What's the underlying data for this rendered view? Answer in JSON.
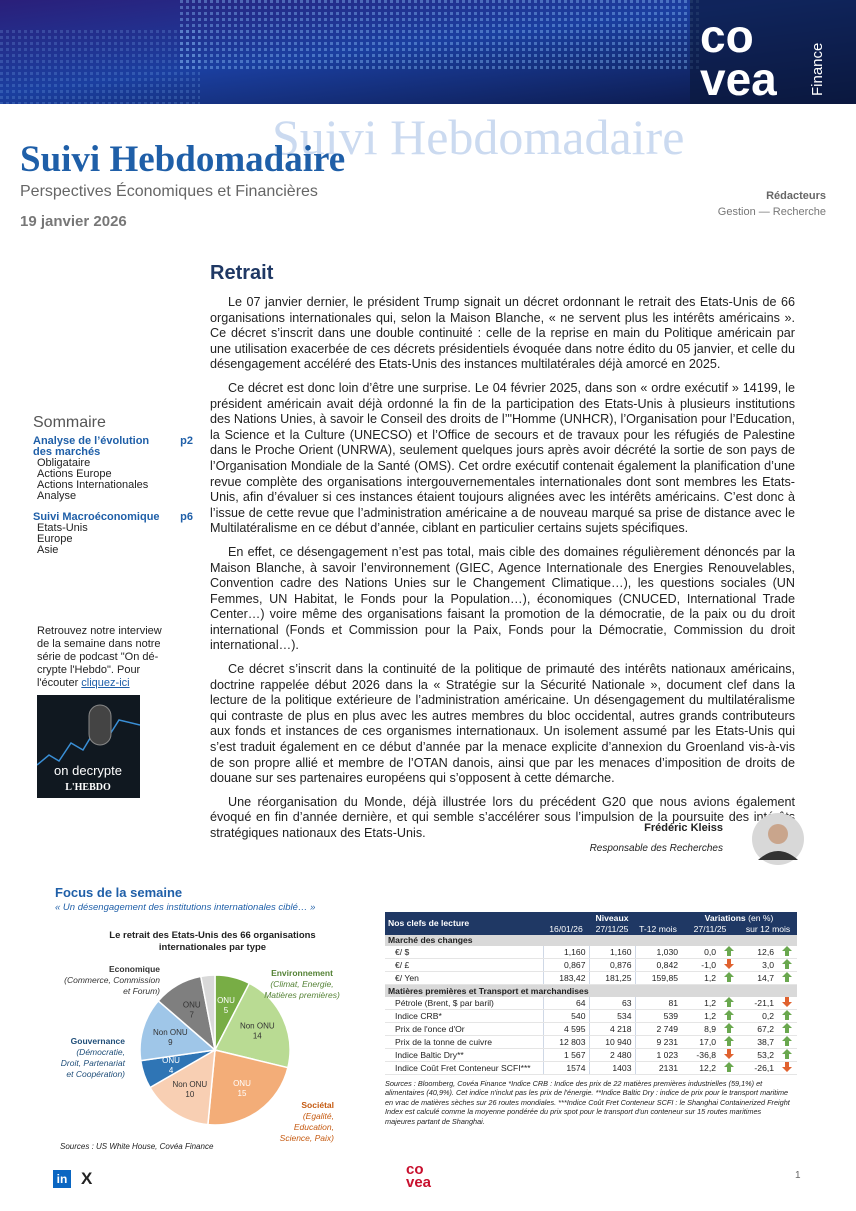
{
  "header": {
    "title": "Suivi Hebdomadaire",
    "subtitle": "Perspectives Économiques et Financières",
    "date": "19 janvier 2026",
    "authors_label": "Rédacteurs",
    "authors": "Gestion — Recherche",
    "logo": [
      "co",
      "vea",
      "Finance"
    ]
  },
  "sidebar": {
    "title": "Sommaire",
    "sections": [
      {
        "title": "Analyse de l’évolution des marchés",
        "page": "p2",
        "items": [
          "Obligataire",
          "Actions Europe",
          "Actions Internationales",
          "Analyse"
        ]
      },
      {
        "title": "Suivi Macroéconomique",
        "page": "p6",
        "items": [
          "Etats-Unis",
          "Europe",
          "Asie"
        ]
      }
    ],
    "podcast_text": "Retrouvez notre interview de la semaine dans notre série de podcast \"On dé-crypte l'Hebdo\". Pour l'écouter",
    "podcast_link": "cliquez-ici",
    "podcast_image": [
      "on decrypte",
      "L'HEBDO"
    ]
  },
  "article": {
    "title": "Retrait",
    "paragraphs": [
      "Le 07 janvier dernier, le président Trump signait un décret ordonnant le retrait des Etats-Unis de 66 organisations internationales qui, selon la Maison Blanche, « ne servent plus les intérêts américains ». Ce décret s’inscrit dans une double continuité : celle de la reprise en main du Politique américain par une utilisation exacerbée de ces décrets présidentiels évoquée dans notre édito du 05 janvier, et celle du désengagement accéléré des Etats-Unis des instances multilatérales déjà amorcé en 2025.",
      "Ce décret est donc loin d’être une surprise. Le 04 février 2025, dans son « ordre exécutif » 14199, le président américain avait déjà ordonné la fin de la participation des Etats-Unis à plusieurs institutions des Nations Unies, à savoir le Conseil des droits de l’\"Homme (UNHCR), l’Organisation pour l’Education, la Science et la Culture (UNECSO) et l’Office de secours et de travaux pour les réfugiés de Palestine dans le Proche Orient (UNRWA), seulement quelques jours après avoir décrété la sortie de son pays de l’Organisation Mondiale de la Santé (OMS). Cet ordre exécutif contenait également la planification d’une revue complète des organisations intergouvernementales internationales dont sont membres les Etats-Unis, afin d’évaluer si ces instances étaient toujours alignées avec les intérêts américains. C’est donc à l’issue de cette revue que l’administration américaine a de nouveau marqué sa prise de distance avec le Multilatéralisme en ce début d’année, ciblant en particulier certains sujets spécifiques.",
      "En effet, ce désengagement n’est pas total, mais cible des domaines régulièrement dénoncés par la Maison Blanche, à savoir l’environnement (GIEC, Agence Internationale des Energies Renouvelables, Convention cadre des Nations Unies sur le Changement Climatique…), les questions sociales (UN Femmes, UN Habitat, le Fonds pour la Population…), économiques (CNUCED, International Trade Center…) voire même des organisations faisant la promotion de la démocratie, de la paix ou du droit international (Fonds et Commission pour la Paix,  Fonds pour la Démocratie, Commission du droit international…).",
      "Ce décret s’inscrit dans la continuité de la politique de primauté des intérêts nationaux américains, doctrine rappelée début 2026 dans la « Stratégie sur la Sécurité Nationale », document clef dans la lecture de la politique extérieure de l’administration américaine. Un désengagement du multilatéralisme qui contraste de plus en plus avec les autres membres du bloc occidental, autres grands contributeurs aux fonds et instances de ces organismes internationaux. Un isolement assumé par les Etats-Unis qui s’est traduit également en ce début d’année par la menace explicite d’annexion du Groenland vis-à-vis de son propre allié et membre de l’OTAN danois, ainsi que par les menaces d’imposition de droits de douane sur ses partenaires européens qui s’opposent à cette démarche.",
      "Une réorganisation du Monde, déjà illustrée lors du précédent G20 que nous avions également évoqué en fin d’année dernière, et qui semble s’accélérer sous l’impulsion de la poursuite des intérêts stratégiques nationaux des Etats-Unis."
    ],
    "author": "Frédéric Kleiss",
    "author_role": "Responsable des Recherches"
  },
  "focus": {
    "title": "Focus de la semaine",
    "subtitle": "« Un désengagement des institutions internationales ciblé… »"
  },
  "chart_data": {
    "type": "pie",
    "title": "Le retrait des Etats-Unis des 66 organisations internationales par type",
    "categories": [
      "ONU",
      "Non ONU",
      "ONU",
      "Non ONU",
      "ONU",
      "Non ONU",
      "ONU",
      "Non ONU"
    ],
    "values": [
      5,
      14,
      15,
      10,
      4,
      9,
      7,
      2
    ],
    "colors": [
      "#78ad45",
      "#b9db93",
      "#f3ad78",
      "#f8cfb3",
      "#2f75b5",
      "#9fc6e8",
      "#7f7f7f",
      "#d9d9d9"
    ],
    "groups": [
      {
        "name": "Environnement",
        "detail": "(Climat, Energie, Matières premières)"
      },
      {
        "name": "Sociétal",
        "detail": "(Egalité, Education, Science, Paix)"
      },
      {
        "name": "Gouvernance",
        "detail": "(Démocratie, Droit, Partenariat et Coopération)"
      },
      {
        "name": "Economique",
        "detail": "(Commerce, Commission et Forum)"
      }
    ],
    "source": "Sources : US White House, Covéa Finance"
  },
  "table": {
    "title": "Nos clefs de lecture",
    "levels": "Niveaux",
    "variations": "Variations",
    "variations_unit": "(en %)",
    "columns": [
      "16/01/26",
      "27/11/25",
      "T-12 mois",
      "27/11/25",
      "sur 12 mois"
    ],
    "sections": [
      {
        "title": "Marché des changes",
        "rows": [
          [
            "€/ $",
            "1,160",
            "1,160",
            "1,030",
            "0,0",
            "12,6"
          ],
          [
            "€/ £",
            "0,867",
            "0,876",
            "0,842",
            "-1,0",
            "3,0"
          ],
          [
            "€/ Yen",
            "183,42",
            "181,25",
            "159,85",
            "1,2",
            "14,7"
          ]
        ]
      },
      {
        "title": "Matières premières et Transport et marchandises",
        "rows": [
          [
            "Pétrole (Brent, $ par baril)",
            "64",
            "63",
            "81",
            "1,2",
            "-21,1"
          ],
          [
            "Indice CRB*",
            "540",
            "534",
            "539",
            "1,2",
            "0,2"
          ],
          [
            "Prix de l'once d'Or",
            "4 595",
            "4 218",
            "2 749",
            "8,9",
            "67,2"
          ],
          [
            "Prix de la tonne de cuivre",
            "12 803",
            "10 940",
            "9 231",
            "17,0",
            "38,7"
          ],
          [
            "Indice Baltic Dry**",
            "1 567",
            "2 480",
            "1 023",
            "-36,8",
            "53,2"
          ],
          [
            "Indice Coût Fret Conteneur SCFI***",
            "1574",
            "1403",
            "2131",
            "12,2",
            "-26,1"
          ]
        ]
      }
    ],
    "sources": "Sources : Bloomberg, Covéa Finance  *Indice CRB : Indice des prix de 22 matières premières industrielles (59,1%) et alimentaires (40,9%). Cet indice n'inclut pas les prix de l'énergie. **Indice Baltic Dry : indice de prix pour le transport maritime en vrac de matières sèches sur 26 routes mondiales. ***Indice Coût Fret Conteneur SCFI : le Shanghai Containerized Freight Index est calculé comme la moyenne pondérée du prix spot pour le transport d'un conteneur sur 15 routes maritimes majeures partant de Shanghai."
  },
  "footer": {
    "page": "1",
    "social": [
      "in",
      "X"
    ]
  }
}
